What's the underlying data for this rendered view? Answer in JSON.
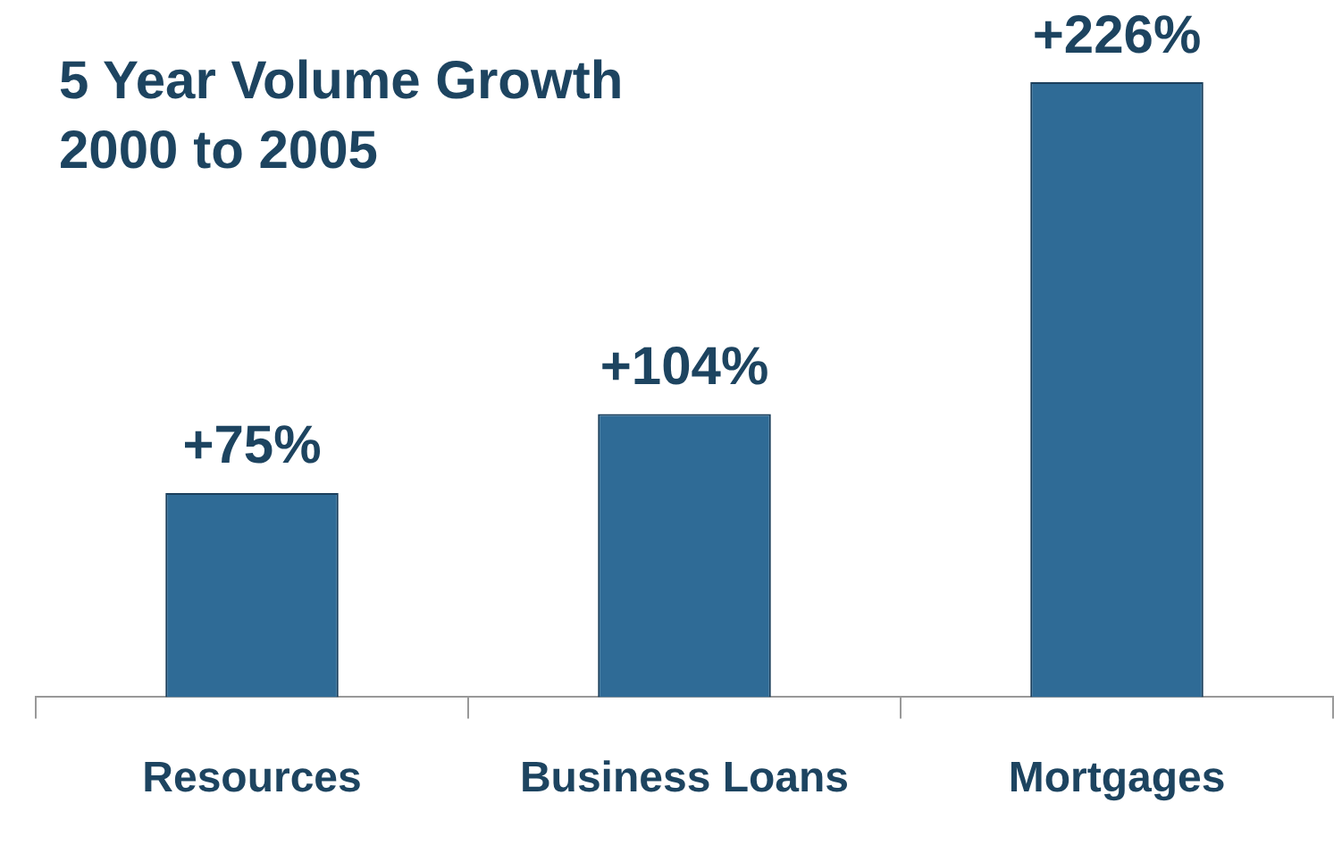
{
  "chart_data": {
    "type": "bar",
    "title": "5 Year Volume Growth",
    "subtitle": "2000 to 2005",
    "categories": [
      "Resources",
      "Business Loans",
      "Mortgages"
    ],
    "values": [
      75,
      104,
      226
    ],
    "color": "#2f6b96",
    "value_labels": [
      "+75%",
      "+104%",
      "+226%"
    ],
    "grid": false,
    "legend": false
  }
}
